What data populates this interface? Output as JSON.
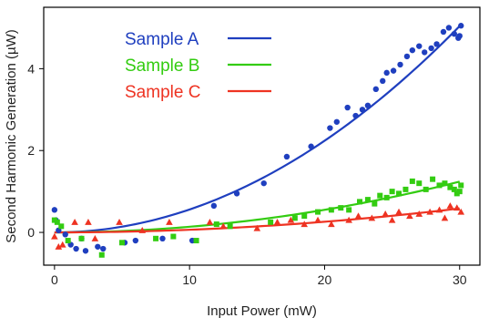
{
  "chart_data": {
    "type": "scatter",
    "xlabel": "Input Power (mW)",
    "ylabel": "Second Harmonic Generation (µW)",
    "xlim": [
      -0.8,
      31.5
    ],
    "ylim": [
      -0.8,
      5.5
    ],
    "x_ticks": [
      0,
      10,
      20,
      30
    ],
    "x_tick_labels": [
      "0",
      "10",
      "20",
      "30"
    ],
    "y_ticks": [
      0,
      2,
      4
    ],
    "y_tick_labels": [
      "0",
      "2",
      "4"
    ],
    "grid": false,
    "legend_position": "top-left",
    "series": [
      {
        "name": "Sample A",
        "color": "#1f3fbf",
        "marker": "circle",
        "fit": "quadratic",
        "fit_coefficient": 0.0056,
        "points": [
          [
            0.0,
            0.55
          ],
          [
            0.1,
            0.3
          ],
          [
            0.3,
            0.05
          ],
          [
            0.8,
            -0.05
          ],
          [
            1.2,
            -0.3
          ],
          [
            1.6,
            -0.4
          ],
          [
            2.0,
            -0.15
          ],
          [
            2.3,
            -0.45
          ],
          [
            3.2,
            -0.35
          ],
          [
            3.6,
            -0.4
          ],
          [
            5.2,
            -0.25
          ],
          [
            6.0,
            -0.2
          ],
          [
            8.0,
            -0.15
          ],
          [
            10.2,
            -0.2
          ],
          [
            11.8,
            0.65
          ],
          [
            13.5,
            0.95
          ],
          [
            15.5,
            1.2
          ],
          [
            17.2,
            1.85
          ],
          [
            19.0,
            2.1
          ],
          [
            20.4,
            2.55
          ],
          [
            20.9,
            2.7
          ],
          [
            21.7,
            3.05
          ],
          [
            22.3,
            2.85
          ],
          [
            22.8,
            3.0
          ],
          [
            23.2,
            3.1
          ],
          [
            23.8,
            3.5
          ],
          [
            24.3,
            3.7
          ],
          [
            24.6,
            3.9
          ],
          [
            25.1,
            3.95
          ],
          [
            25.6,
            4.1
          ],
          [
            26.1,
            4.3
          ],
          [
            26.5,
            4.45
          ],
          [
            27.0,
            4.55
          ],
          [
            27.4,
            4.4
          ],
          [
            27.9,
            4.5
          ],
          [
            28.3,
            4.6
          ],
          [
            28.8,
            4.9
          ],
          [
            29.2,
            5.0
          ],
          [
            29.6,
            4.85
          ],
          [
            29.9,
            4.75
          ],
          [
            30.0,
            4.8
          ],
          [
            30.1,
            5.05
          ]
        ]
      },
      {
        "name": "Sample B",
        "color": "#33cc11",
        "marker": "square",
        "fit": "quadratic",
        "fit_coefficient": 0.00138,
        "points": [
          [
            0.0,
            0.3
          ],
          [
            0.2,
            0.25
          ],
          [
            0.5,
            0.15
          ],
          [
            1.0,
            -0.2
          ],
          [
            2.0,
            -0.15
          ],
          [
            3.5,
            -0.55
          ],
          [
            5.0,
            -0.25
          ],
          [
            7.5,
            -0.15
          ],
          [
            8.8,
            -0.1
          ],
          [
            10.5,
            -0.2
          ],
          [
            12.0,
            0.2
          ],
          [
            13.0,
            0.15
          ],
          [
            16.0,
            0.25
          ],
          [
            17.8,
            0.35
          ],
          [
            18.5,
            0.4
          ],
          [
            19.5,
            0.5
          ],
          [
            20.5,
            0.55
          ],
          [
            21.2,
            0.6
          ],
          [
            21.8,
            0.55
          ],
          [
            22.6,
            0.75
          ],
          [
            23.2,
            0.8
          ],
          [
            23.7,
            0.7
          ],
          [
            24.1,
            0.9
          ],
          [
            24.6,
            0.85
          ],
          [
            25.0,
            1.0
          ],
          [
            25.5,
            0.95
          ],
          [
            26.0,
            1.05
          ],
          [
            26.5,
            1.25
          ],
          [
            27.0,
            1.2
          ],
          [
            27.5,
            1.05
          ],
          [
            28.0,
            1.3
          ],
          [
            28.5,
            1.15
          ],
          [
            28.9,
            1.2
          ],
          [
            29.3,
            1.1
          ],
          [
            29.6,
            1.05
          ],
          [
            29.8,
            0.95
          ],
          [
            30.0,
            1.0
          ],
          [
            30.1,
            1.15
          ]
        ]
      },
      {
        "name": "Sample C",
        "color": "#ee3322",
        "marker": "triangle",
        "fit": "quadratic",
        "fit_coefficient": 0.00065,
        "points": [
          [
            0.0,
            -0.1
          ],
          [
            0.3,
            -0.35
          ],
          [
            0.6,
            -0.3
          ],
          [
            1.5,
            0.25
          ],
          [
            2.5,
            0.25
          ],
          [
            3.0,
            -0.15
          ],
          [
            4.8,
            0.25
          ],
          [
            6.5,
            0.05
          ],
          [
            8.5,
            0.25
          ],
          [
            11.5,
            0.25
          ],
          [
            12.5,
            0.15
          ],
          [
            15.0,
            0.1
          ],
          [
            16.5,
            0.25
          ],
          [
            17.5,
            0.3
          ],
          [
            18.5,
            0.2
          ],
          [
            19.5,
            0.3
          ],
          [
            20.5,
            0.2
          ],
          [
            21.8,
            0.3
          ],
          [
            22.5,
            0.4
          ],
          [
            23.5,
            0.35
          ],
          [
            24.5,
            0.45
          ],
          [
            25.0,
            0.3
          ],
          [
            25.5,
            0.5
          ],
          [
            26.3,
            0.4
          ],
          [
            27.0,
            0.45
          ],
          [
            27.8,
            0.5
          ],
          [
            28.5,
            0.55
          ],
          [
            28.9,
            0.35
          ],
          [
            29.3,
            0.65
          ],
          [
            29.8,
            0.6
          ],
          [
            30.1,
            0.5
          ]
        ]
      }
    ]
  }
}
